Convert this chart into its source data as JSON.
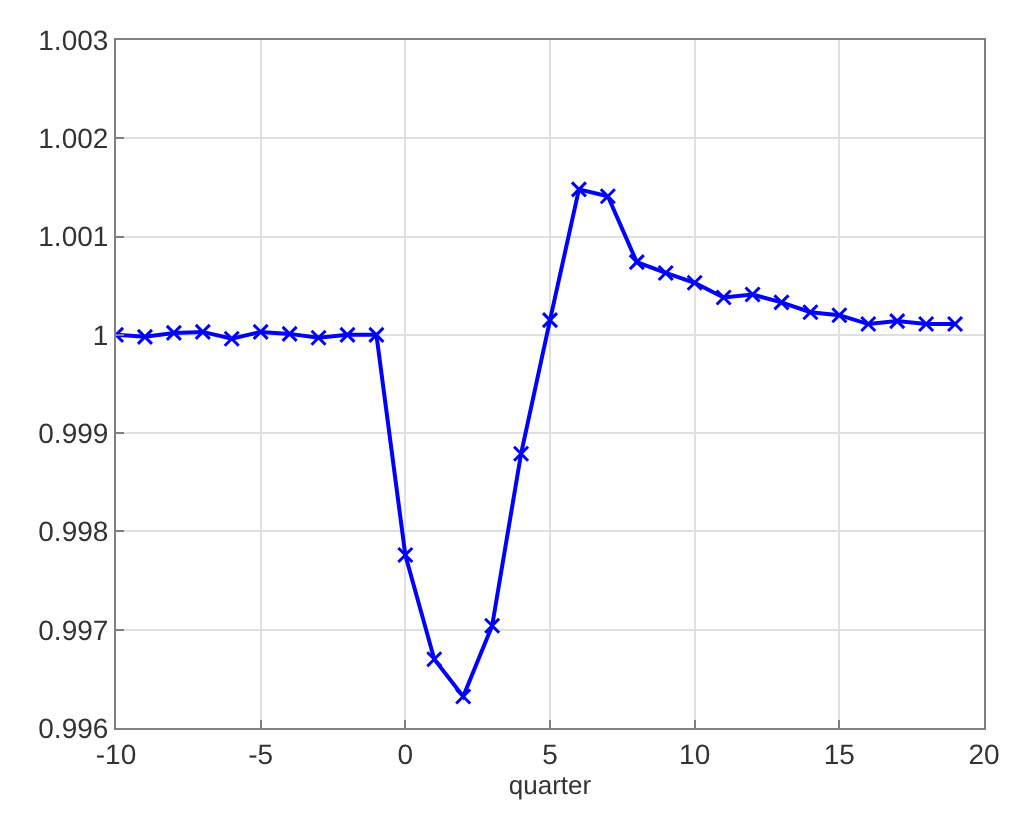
{
  "chart_data": {
    "type": "line",
    "xlabel": "quarter",
    "x": [
      -10,
      -9,
      -8,
      -7,
      -6,
      -5,
      -4,
      -3,
      -2,
      -1,
      0,
      1,
      2,
      3,
      4,
      5,
      6,
      7,
      8,
      9,
      10,
      11,
      12,
      13,
      14,
      15,
      16,
      17,
      18,
      19
    ],
    "series": [
      {
        "color": "#0000ff",
        "values": [
          1.0,
          0.99998,
          1.00002,
          1.00003,
          0.99996,
          1.00003,
          1.00001,
          0.99997,
          1.0,
          1.0,
          0.99776,
          0.9967,
          0.99632,
          0.99704,
          0.99879,
          1.00015,
          1.00148,
          1.00141,
          1.00074,
          1.00063,
          1.00053,
          1.00038,
          1.00041,
          1.00033,
          1.00023,
          1.0002,
          1.00011,
          1.00014,
          1.00011,
          1.00011
        ]
      }
    ],
    "xlim": [
      -10,
      20
    ],
    "xticks": [
      -10,
      -5,
      0,
      5,
      10,
      15,
      20
    ],
    "ylim": [
      0.996,
      1.003
    ],
    "yticks": [
      0.996,
      0.997,
      0.998,
      0.999,
      1,
      1.001,
      1.002,
      1.003
    ],
    "grid": true,
    "marker": "cross",
    "line_style": "solid"
  }
}
